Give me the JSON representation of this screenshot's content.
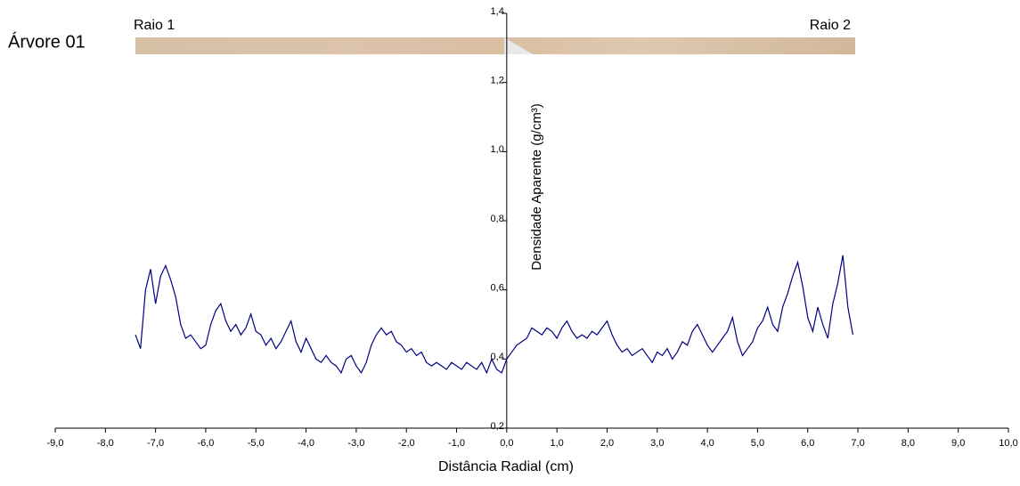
{
  "chart_data": {
    "type": "line",
    "title": "Árvore 01",
    "annotations": [
      "Raio 1",
      "Raio 2"
    ],
    "xlabel": "Distância Radial (cm)",
    "ylabel": "Densidade Aparente (g/cm³)",
    "color": "#000080",
    "x": [
      -7.4,
      -7.3,
      -7.2,
      -7.1,
      -7,
      -6.9,
      -6.8,
      -6.7,
      -6.6,
      -6.5,
      -6.4,
      -6.3,
      -6.2,
      -6.1,
      -6,
      -5.9,
      -5.8,
      -5.7,
      -5.6,
      -5.5,
      -5.4,
      -5.3,
      -5.2,
      -5.1,
      -5,
      -4.9,
      -4.8,
      -4.7,
      -4.6,
      -4.5,
      -4.4,
      -4.3,
      -4.2,
      -4.1,
      -4,
      -3.9,
      -3.8,
      -3.7,
      -3.6,
      -3.5,
      -3.4,
      -3.3,
      -3.2,
      -3.1,
      -3,
      -2.9,
      -2.8,
      -2.7,
      -2.6,
      -2.5,
      -2.4,
      -2.3,
      -2.2,
      -2.1,
      -2,
      -1.9,
      -1.8,
      -1.7,
      -1.6,
      -1.5,
      -1.4,
      -1.3,
      -1.2,
      -1.1,
      -1,
      -0.9,
      -0.8,
      -0.7,
      -0.6,
      -0.5,
      -0.4,
      -0.3,
      -0.2,
      -0.1,
      0,
      0.1,
      0.2,
      0.3,
      0.4,
      0.5,
      0.6,
      0.7,
      0.8,
      0.9,
      1,
      1.1,
      1.2,
      1.3,
      1.4,
      1.5,
      1.6,
      1.7,
      1.8,
      1.9,
      2,
      2.1,
      2.2,
      2.3,
      2.4,
      2.5,
      2.6,
      2.7,
      2.8,
      2.9,
      3,
      3.1,
      3.2,
      3.3,
      3.4,
      3.5,
      3.6,
      3.7,
      3.8,
      3.9,
      4,
      4.1,
      4.2,
      4.3,
      4.4,
      4.5,
      4.6,
      4.7,
      4.8,
      4.9,
      5,
      5.1,
      5.2,
      5.3,
      5.4,
      5.5,
      5.6,
      5.7,
      5.8,
      5.9,
      6,
      6.1,
      6.2,
      6.3,
      6.4,
      6.5,
      6.6,
      6.7,
      6.8,
      6.9
    ],
    "values": [
      0.47,
      0.43,
      0.6,
      0.66,
      0.56,
      0.64,
      0.67,
      0.63,
      0.58,
      0.5,
      0.46,
      0.47,
      0.45,
      0.43,
      0.44,
      0.5,
      0.54,
      0.56,
      0.51,
      0.48,
      0.5,
      0.47,
      0.49,
      0.53,
      0.48,
      0.47,
      0.44,
      0.46,
      0.43,
      0.45,
      0.48,
      0.51,
      0.45,
      0.42,
      0.46,
      0.43,
      0.4,
      0.39,
      0.41,
      0.39,
      0.38,
      0.36,
      0.4,
      0.41,
      0.38,
      0.36,
      0.39,
      0.44,
      0.47,
      0.49,
      0.47,
      0.48,
      0.45,
      0.44,
      0.42,
      0.43,
      0.41,
      0.42,
      0.39,
      0.38,
      0.39,
      0.38,
      0.37,
      0.39,
      0.38,
      0.37,
      0.39,
      0.38,
      0.37,
      0.39,
      0.36,
      0.4,
      0.37,
      0.36,
      0.4,
      0.42,
      0.44,
      0.45,
      0.46,
      0.49,
      0.48,
      0.47,
      0.49,
      0.48,
      0.46,
      0.49,
      0.51,
      0.48,
      0.46,
      0.47,
      0.46,
      0.48,
      0.47,
      0.49,
      0.51,
      0.47,
      0.44,
      0.42,
      0.43,
      0.41,
      0.42,
      0.43,
      0.41,
      0.39,
      0.42,
      0.41,
      0.43,
      0.4,
      0.42,
      0.45,
      0.44,
      0.48,
      0.5,
      0.47,
      0.44,
      0.42,
      0.44,
      0.46,
      0.48,
      0.52,
      0.45,
      0.41,
      0.43,
      0.45,
      0.49,
      0.51,
      0.55,
      0.5,
      0.48,
      0.55,
      0.59,
      0.64,
      0.68,
      0.61,
      0.52,
      0.48,
      0.55,
      0.5,
      0.46,
      0.56,
      0.62,
      0.7,
      0.55,
      0.47
    ],
    "xlim": [
      -9,
      10
    ],
    "xticks": [
      {
        "value": -9,
        "label": "-9,0"
      },
      {
        "value": -8,
        "label": "-8,0"
      },
      {
        "value": -7,
        "label": "-7,0"
      },
      {
        "value": -6,
        "label": "-6,0"
      },
      {
        "value": -5,
        "label": "-5,0"
      },
      {
        "value": -4,
        "label": "-4,0"
      },
      {
        "value": -3,
        "label": "-3,0"
      },
      {
        "value": -2,
        "label": "-2,0"
      },
      {
        "value": -1,
        "label": "-1,0"
      },
      {
        "value": 0,
        "label": "0,0"
      },
      {
        "value": 1,
        "label": "1,0"
      },
      {
        "value": 2,
        "label": "2,0"
      },
      {
        "value": 3,
        "label": "3,0"
      },
      {
        "value": 4,
        "label": "4,0"
      },
      {
        "value": 5,
        "label": "5,0"
      },
      {
        "value": 6,
        "label": "6,0"
      },
      {
        "value": 7,
        "label": "7,0"
      },
      {
        "value": 8,
        "label": "8,0"
      },
      {
        "value": 9,
        "label": "9,0"
      },
      {
        "value": 10,
        "label": "10,0"
      }
    ],
    "ylim": [
      0.2,
      1.4
    ],
    "yticks": [
      {
        "value": 0.2,
        "label": "0,2"
      },
      {
        "value": 0.4,
        "label": "0,4"
      },
      {
        "value": 0.6,
        "label": "0,6"
      },
      {
        "value": 0.8,
        "label": "0,8"
      },
      {
        "value": 1.0,
        "label": "1,0"
      },
      {
        "value": 1.2,
        "label": "1,2"
      },
      {
        "value": 1.4,
        "label": "1,4"
      }
    ]
  }
}
